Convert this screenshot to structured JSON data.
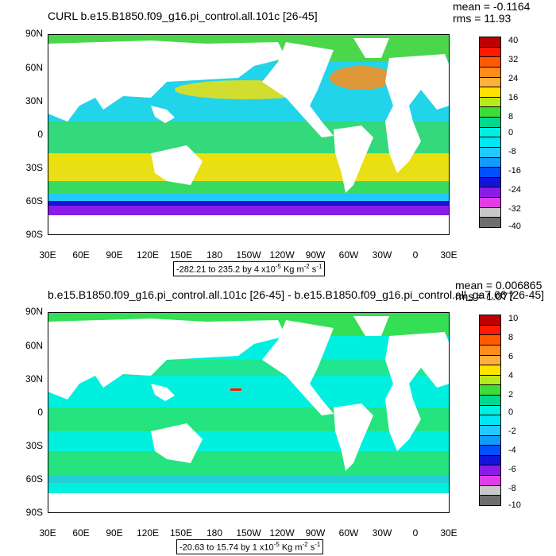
{
  "plot1": {
    "title": "CURL b.e15.B1850.f09_g16.pi_control.all.101c [26-45]",
    "mean": "mean = -0.1164",
    "rms": "rms = 11.93",
    "range_text": "-282.21 to 235.2 by 4 x10",
    "range_exp": "-5",
    "units": " Kg m",
    "units_exp1": "-2",
    "units_tail": " s",
    "units_exp2": "-1",
    "colorbar_labels": [
      "40",
      "32",
      "24",
      "16",
      "8",
      "0",
      "-8",
      "-16",
      "-24",
      "-32",
      "-40"
    ]
  },
  "plot2": {
    "title": "b.e15.B1850.f09_g16.pi_control.all.101c [26-45] - b.e15.B1850.f09_g16.pi_control.all_ga7.66 [26-45]",
    "mean": "mean = 0.006865",
    "rms": "rms = 1.077",
    "range_text": "-20.63 to 15.74 by 1 x10",
    "range_exp": "-5",
    "units": " Kg m",
    "units_exp1": "-2",
    "units_tail": " s",
    "units_exp2": "-1",
    "colorbar_labels": [
      "10",
      "8",
      "6",
      "4",
      "2",
      "0",
      "-2",
      "-4",
      "-6",
      "-8",
      "-10"
    ]
  },
  "lat_labels": [
    "90N",
    "60N",
    "30N",
    "0",
    "30S",
    "60S",
    "90S"
  ],
  "lon_labels": [
    "30E",
    "60E",
    "90E",
    "120E",
    "150E",
    "180",
    "150W",
    "120W",
    "90W",
    "60W",
    "30W",
    "0",
    "30E"
  ],
  "colorbar_colors": [
    "#c00000",
    "#ff1a00",
    "#ff5a00",
    "#ff8c1a",
    "#ffb03b",
    "#ffe000",
    "#b4ea1e",
    "#3ddc3d",
    "#00d890",
    "#00f0e0",
    "#00e6f5",
    "#22c8ff",
    "#119bff",
    "#0050ff",
    "#1414d8",
    "#8a1ce6",
    "#e23ce6",
    "#c8c8c8",
    "#6e6e6e"
  ]
}
